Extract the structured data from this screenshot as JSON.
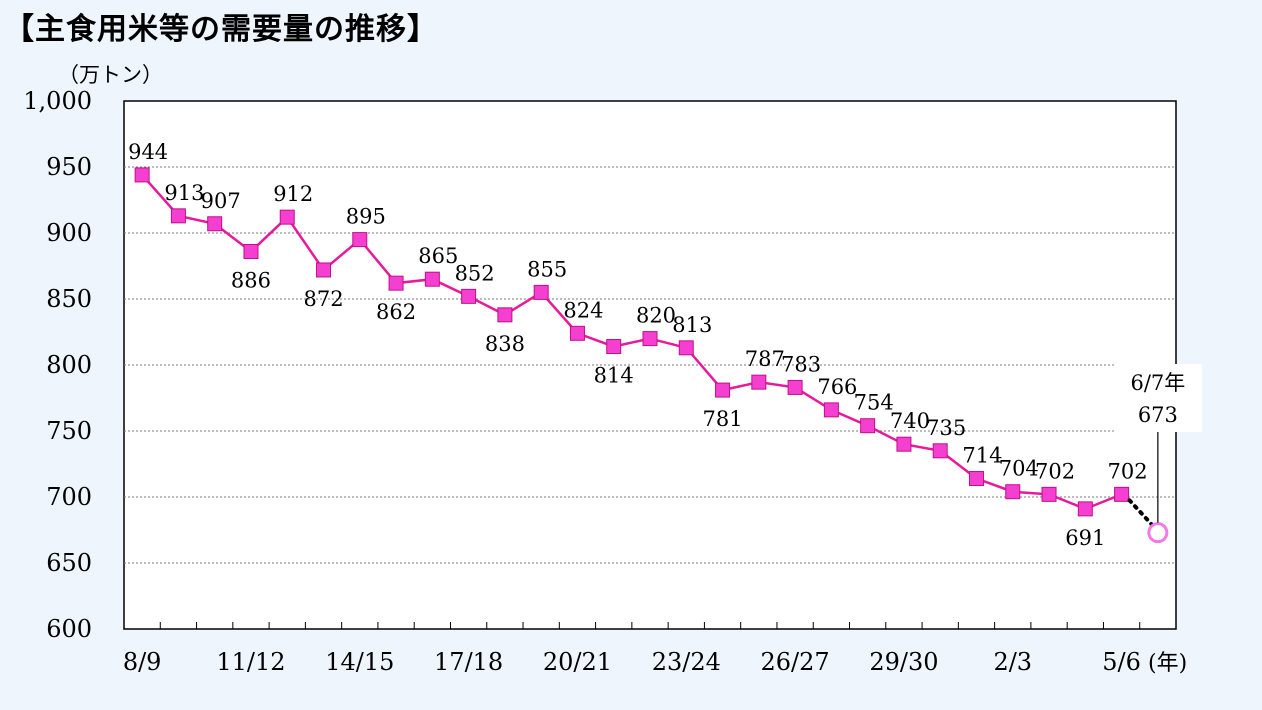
{
  "title": "【主食用米等の需要量の推移】",
  "chart_data": {
    "type": "line",
    "title": "【主食用米等の需要量の推移】",
    "ylabel": "（万トン）",
    "xlabel": "(年)",
    "ylim": [
      600,
      1000
    ],
    "yticks": [
      "600",
      "650",
      "700",
      "750",
      "800",
      "850",
      "900",
      "950",
      "1,000"
    ],
    "xtick_labels": [
      "8/9",
      "11/12",
      "14/15",
      "17/18",
      "20/21",
      "23/24",
      "26/27",
      "29/30",
      "2/3",
      "5/6"
    ],
    "grid": "horizontal-dotted",
    "series": [
      {
        "values": [
          944,
          913,
          907,
          886,
          912,
          872,
          895,
          862,
          865,
          852,
          838,
          855,
          824,
          814,
          820,
          813,
          781,
          787,
          783,
          766,
          754,
          740,
          735,
          714,
          704,
          702,
          691,
          702
        ],
        "color": "#e8199a",
        "marker": "square",
        "marker_color": "#f53fd0"
      }
    ],
    "projection": {
      "label": "6/7年",
      "value": 673,
      "color": "#f07ae8",
      "marker": "hollow-circle"
    }
  }
}
